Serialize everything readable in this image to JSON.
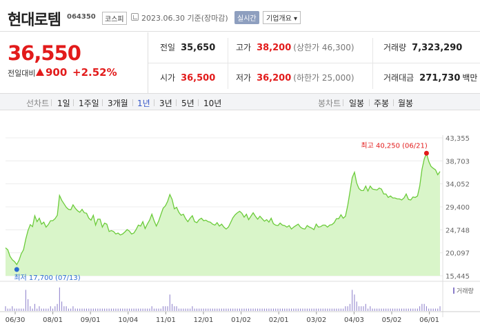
{
  "header": {
    "name": "현대로템",
    "code": "064350",
    "market": "코스피",
    "date": "2023.06.30  기준(장마감)",
    "realtime": "실시간",
    "company_info": "기업개요 ▾"
  },
  "price": {
    "current": "36,550",
    "change_label": "전일대비",
    "change": "900",
    "rate": "+2.52%"
  },
  "stats": {
    "prev_close_label": "전일",
    "prev_close": "35,650",
    "high_label": "고가",
    "high": "38,200",
    "upper_limit": "(상한가 46,300)",
    "volume_label": "거래량",
    "volume": "7,323,290",
    "open_label": "시가",
    "open": "36,500",
    "low_label": "저가",
    "low": "36,200",
    "lower_limit": "(하한가 25,000)",
    "amount_label": "거래대금",
    "amount": "271,730",
    "amount_unit": "백만"
  },
  "tabs": {
    "line_label": "선차트",
    "line_items": [
      "1일",
      "1주일",
      "3개월",
      "1년",
      "3년",
      "5년",
      "10년"
    ],
    "active": "1년",
    "candle_label": "봉차트",
    "candle_items": [
      "일봉",
      "주봉",
      "월봉"
    ]
  },
  "chart_data": {
    "type": "area",
    "y_ticks": [
      "43,355",
      "38,703",
      "34,052",
      "29,400",
      "24,748",
      "20,097",
      "15,445"
    ],
    "ylim": [
      15445,
      43355
    ],
    "x_ticks": [
      "06/30",
      "08/01",
      "09/01",
      "10/04",
      "11/01",
      "12/01",
      "01/02",
      "02/01",
      "03/02",
      "04/03",
      "05/02",
      "06/01"
    ],
    "high_annotation": "최고 40,250 (06/21)",
    "low_annotation": "최저 17,700 (07/13)",
    "volume_label": "거래량",
    "fill_color": "#d9f5c9",
    "line_color": "#6bcb3a",
    "series": [
      {
        "values": [
          21100,
          20700,
          19400,
          18700,
          18300,
          17700,
          18600,
          19900,
          20700,
          22900,
          24600,
          25800,
          25400,
          27600,
          26400,
          27100,
          25900,
          26300,
          25300,
          25800,
          26600,
          26600,
          27000,
          27700,
          31700,
          30700,
          30000,
          29300,
          28900,
          28800,
          29800,
          29100,
          28600,
          28300,
          28900,
          28200,
          28100,
          27100,
          26700,
          27700,
          25700,
          26900,
          26900,
          25300,
          26100,
          25900,
          24400,
          24600,
          24400,
          23900,
          24100,
          23700,
          23900,
          24300,
          24800,
          24500,
          23900,
          24100,
          24800,
          25700,
          25500,
          26400,
          25000,
          25900,
          26700,
          27900,
          26600,
          25500,
          26500,
          27800,
          29100,
          29600,
          30500,
          31900,
          30900,
          29000,
          29300,
          28300,
          27700,
          27900,
          27000,
          26400,
          27100,
          27600,
          26400,
          26200,
          26800,
          27100,
          26600,
          26700,
          26400,
          26300,
          25900,
          25700,
          26200,
          25500,
          25900,
          25300,
          24900,
          25300,
          26200,
          27200,
          27800,
          28200,
          28500,
          28100,
          27300,
          27900,
          26800,
          27500,
          28200,
          27500,
          26900,
          27500,
          27000,
          26500,
          26800,
          26300,
          27100,
          26000,
          25700,
          25600,
          26100,
          25700,
          25600,
          25300,
          25600,
          24900,
          25300,
          25600,
          25900,
          25300,
          25000,
          24900,
          25600,
          25300,
          25100,
          24800,
          25900,
          25300,
          25400,
          25700,
          25700,
          25300,
          25700,
          25800,
          26200,
          27000,
          27000,
          27800,
          27100,
          27500,
          29700,
          32400,
          35300,
          36400,
          34200,
          33100,
          32700,
          32700,
          33600,
          32600,
          33600,
          33000,
          32900,
          32800,
          33200,
          33000,
          32000,
          32000,
          31300,
          31600,
          31200,
          31200,
          31000,
          31000,
          30800,
          31200,
          32000,
          30900,
          30800,
          31400,
          31300,
          31600,
          33600,
          37000,
          39100,
          40250,
          38600,
          37600,
          37200,
          36900,
          35900,
          36550
        ]
      }
    ],
    "volume": [
      2,
      1,
      1,
      2,
      1,
      1,
      1,
      1,
      1,
      9,
      5,
      2,
      1,
      3,
      1,
      2,
      1,
      1,
      1,
      1,
      2,
      1,
      2,
      3,
      10,
      4,
      2,
      2,
      1,
      1,
      2,
      1,
      1,
      1,
      1,
      1,
      1,
      1,
      1,
      1,
      1,
      1,
      1,
      1,
      1,
      1,
      1,
      1,
      1,
      1,
      1,
      1,
      1,
      1,
      1,
      1,
      1,
      1,
      1,
      1,
      1,
      1,
      1,
      1,
      1,
      2,
      1,
      1,
      1,
      1,
      2,
      2,
      2,
      7,
      3,
      2,
      2,
      1,
      1,
      1,
      1,
      1,
      1,
      2,
      1,
      1,
      1,
      1,
      1,
      1,
      1,
      1,
      1,
      1,
      1,
      1,
      1,
      1,
      1,
      1,
      1,
      1,
      1,
      1,
      1,
      1,
      1,
      1,
      1,
      1,
      1,
      1,
      1,
      1,
      1,
      1,
      1,
      1,
      1,
      1,
      1,
      1,
      1,
      1,
      1,
      1,
      1,
      1,
      1,
      1,
      1,
      1,
      1,
      1,
      1,
      1,
      1,
      1,
      1,
      1,
      1,
      1,
      1,
      1,
      1,
      1,
      1,
      1,
      1,
      1,
      1,
      2,
      2,
      3,
      9,
      7,
      4,
      2,
      2,
      2,
      3,
      1,
      2,
      1,
      1,
      1,
      1,
      1,
      1,
      1,
      1,
      1,
      1,
      1,
      1,
      1,
      1,
      1,
      1,
      1,
      1,
      1,
      1,
      1,
      2,
      3,
      3,
      2,
      1,
      1,
      1,
      1,
      1,
      2
    ]
  }
}
